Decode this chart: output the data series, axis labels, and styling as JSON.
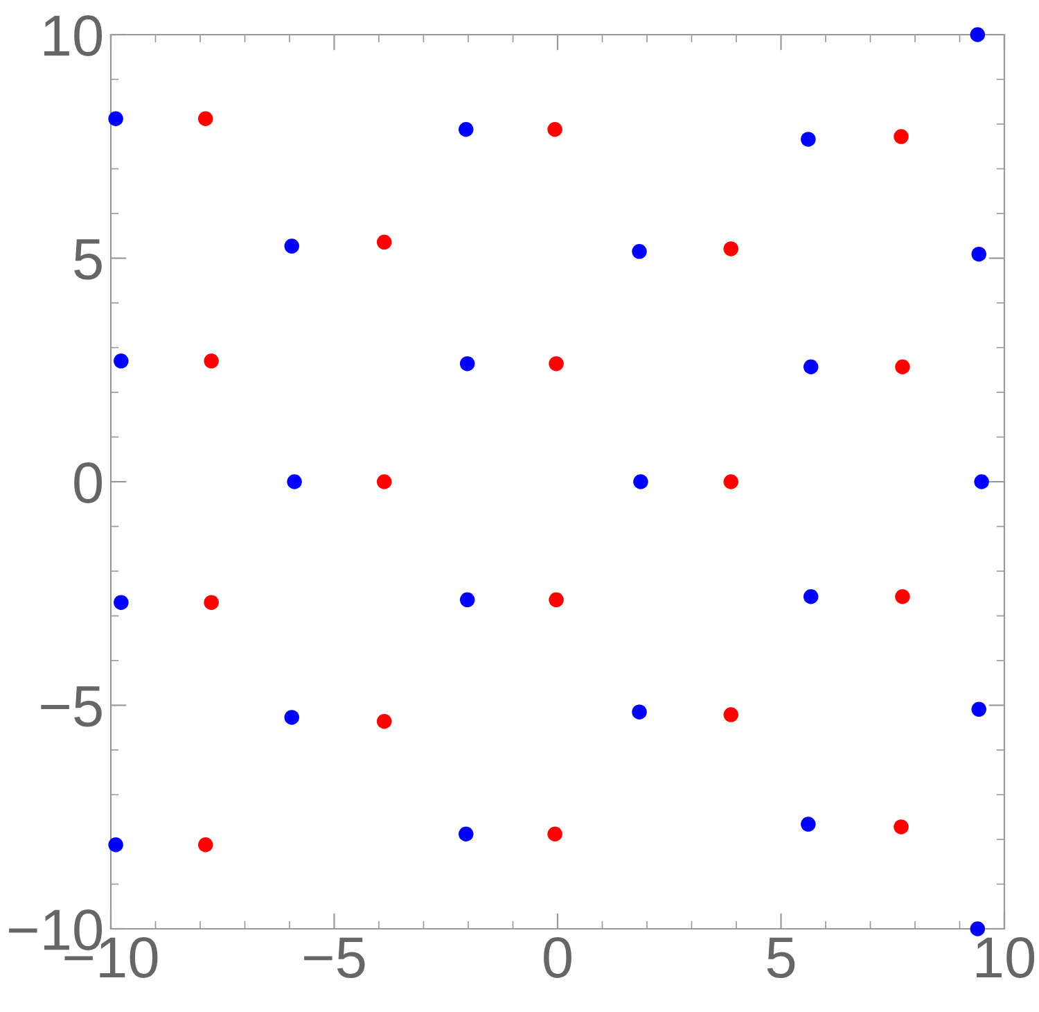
{
  "chart_data": {
    "type": "scatter",
    "marker": "circle",
    "grid": false,
    "legend": false,
    "xlim": [
      -10,
      10
    ],
    "ylim": [
      -10,
      10
    ],
    "xticks": [
      {
        "value": -10,
        "label": "−10"
      },
      {
        "value": -5,
        "label": "−5"
      },
      0,
      5,
      10
    ],
    "yticks": [
      {
        "value": -10,
        "label": "−10"
      },
      {
        "value": -5,
        "label": "−5"
      },
      0,
      5,
      10
    ],
    "series": [
      {
        "color": "#0000ff",
        "x": [
          -9.89,
          -2.05,
          5.61,
          9.4,
          -5.95,
          1.83,
          9.43,
          -9.77,
          -2.02,
          5.67,
          -5.89,
          1.86,
          9.49,
          -9.77,
          -2.02,
          5.67,
          -5.95,
          1.83,
          9.43,
          -9.89,
          -2.05,
          5.61,
          9.4
        ],
        "values": [
          8.12,
          7.88,
          7.66,
          10,
          5.27,
          5.15,
          5.09,
          2.7,
          2.64,
          2.57,
          0,
          0,
          0,
          -2.7,
          -2.64,
          -2.57,
          -5.27,
          -5.15,
          -5.09,
          -8.12,
          -7.88,
          -7.66,
          -10
        ]
      },
      {
        "color": "#ff0000",
        "x": [
          -7.88,
          -0.06,
          7.69,
          -3.88,
          3.88,
          -7.75,
          -0.03,
          7.72,
          -3.88,
          3.88,
          -7.75,
          -0.03,
          7.72,
          -3.88,
          3.88,
          -7.88,
          -0.06,
          7.69
        ],
        "values": [
          8.12,
          7.88,
          7.72,
          5.36,
          5.21,
          2.7,
          2.64,
          2.57,
          0,
          0,
          -2.7,
          -2.64,
          -2.57,
          -5.36,
          -5.21,
          -8.12,
          -7.88,
          -7.72
        ]
      }
    ]
  }
}
